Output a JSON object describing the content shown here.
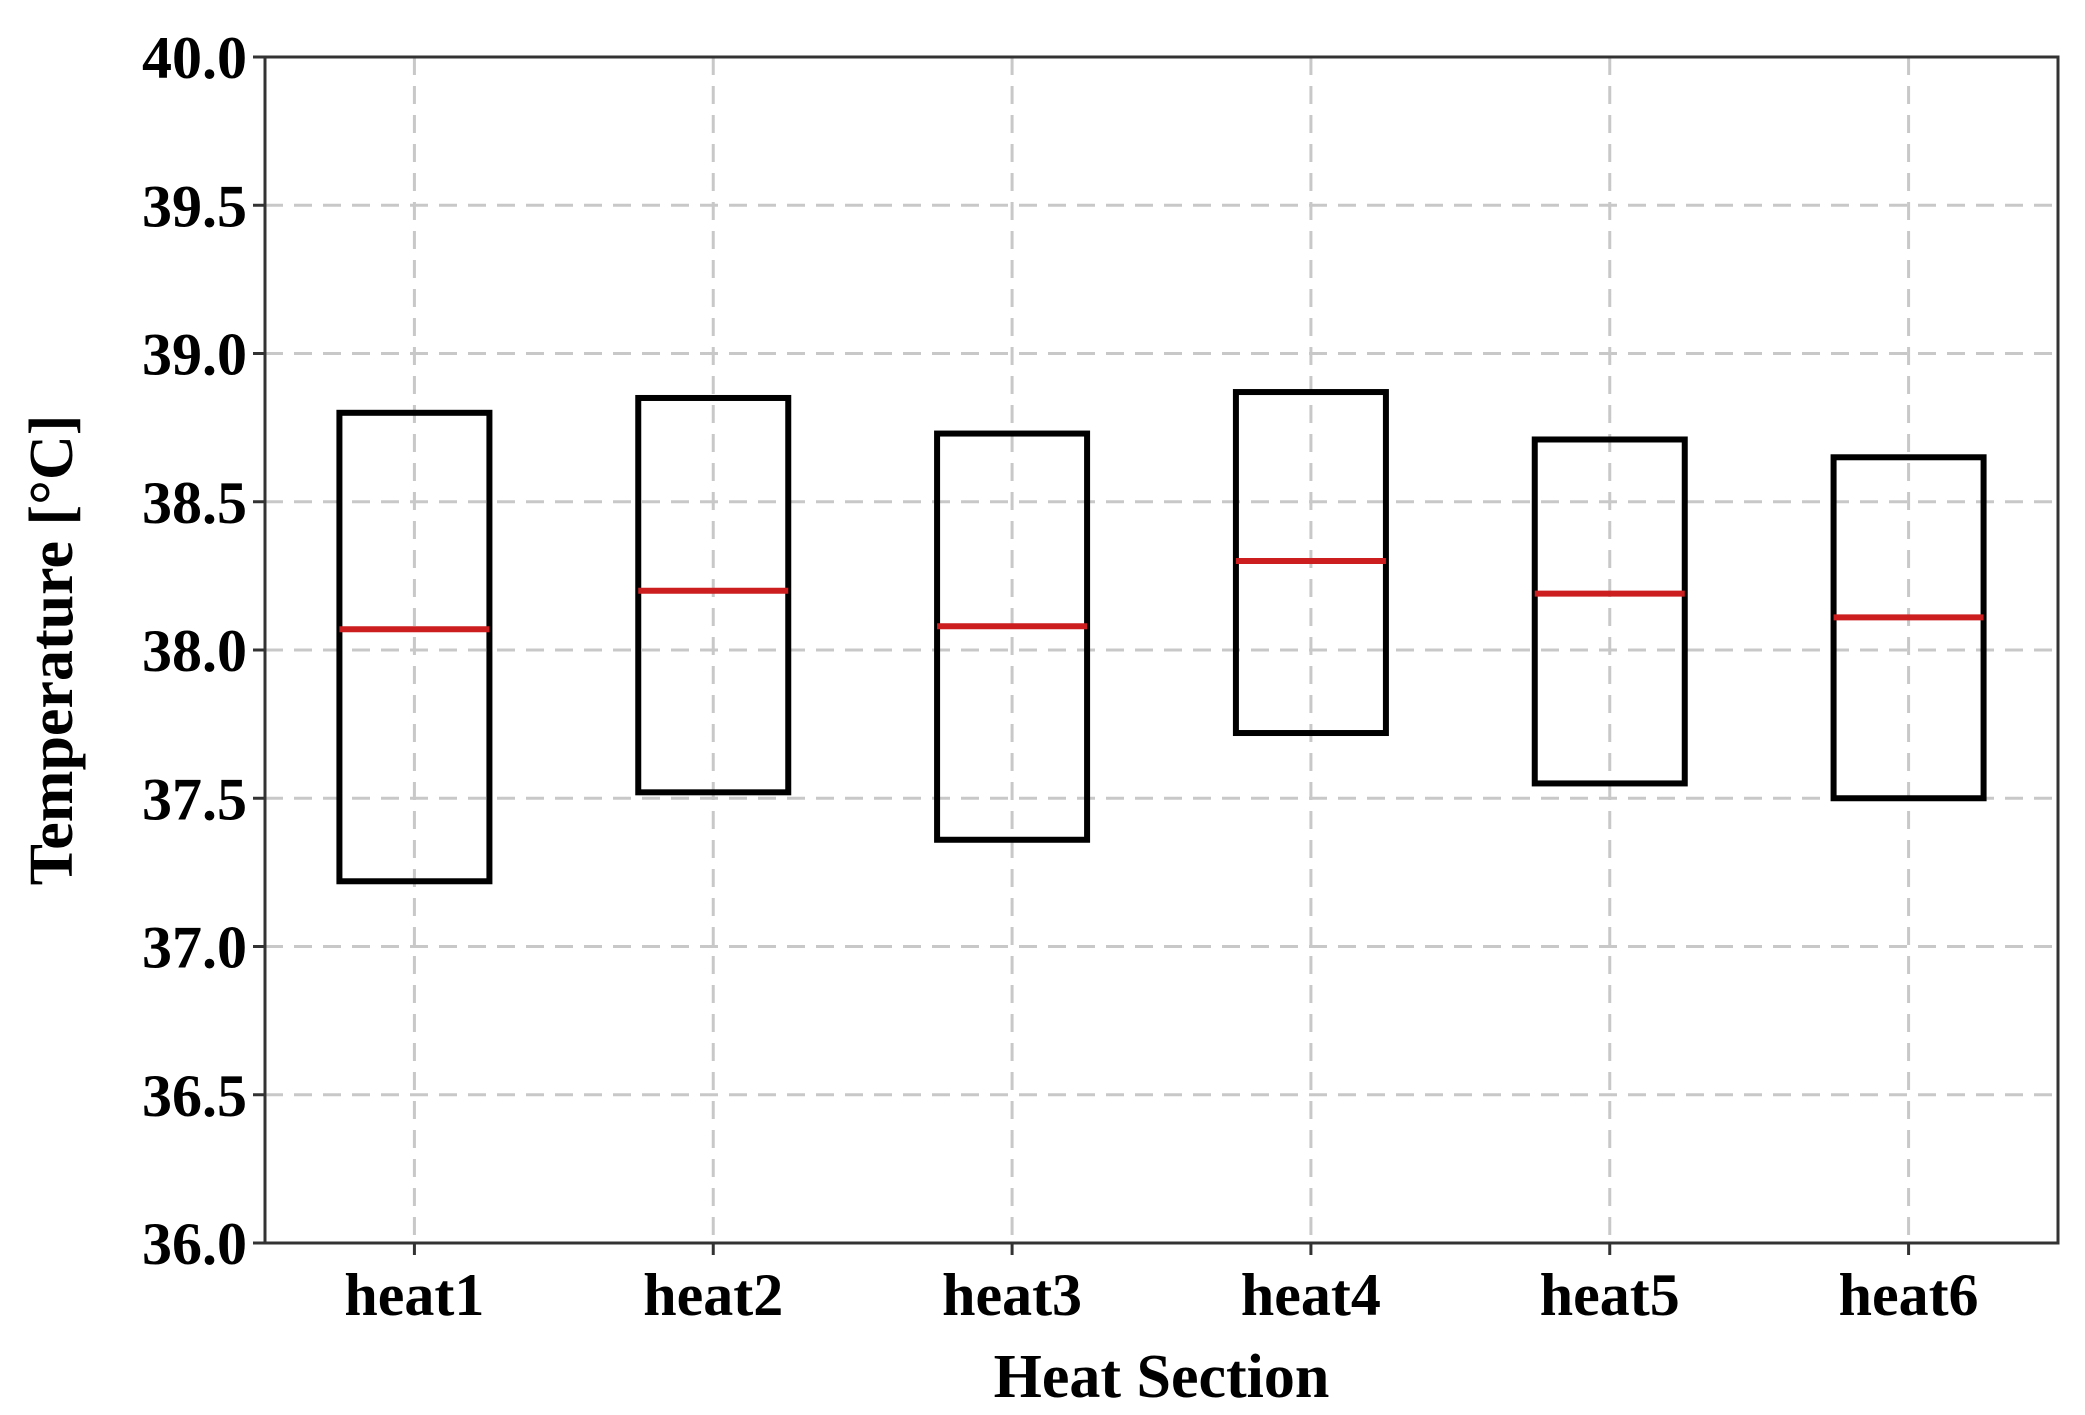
{
  "chart_data": {
    "type": "box",
    "xlabel": "Heat Section",
    "ylabel": "Temperature [°C]",
    "ylim": [
      36.0,
      40.0
    ],
    "yticks": [
      "36.0",
      "36.5",
      "37.0",
      "37.5",
      "38.0",
      "38.5",
      "39.0",
      "39.5",
      "40.0"
    ],
    "grid": true,
    "categories": [
      "heat1",
      "heat2",
      "heat3",
      "heat4",
      "heat5",
      "heat6"
    ],
    "boxes": [
      {
        "q1": 37.22,
        "median": 38.07,
        "q3": 38.8
      },
      {
        "q1": 37.52,
        "median": 38.2,
        "q3": 38.85
      },
      {
        "q1": 37.36,
        "median": 38.08,
        "q3": 38.73
      },
      {
        "q1": 37.72,
        "median": 38.3,
        "q3": 38.87
      },
      {
        "q1": 37.55,
        "median": 38.19,
        "q3": 38.71
      },
      {
        "q1": 37.5,
        "median": 38.11,
        "q3": 38.65
      }
    ],
    "colors": {
      "box": "#000000",
      "median": "#cc1e1e",
      "grid": "#c8c8c8"
    }
  }
}
